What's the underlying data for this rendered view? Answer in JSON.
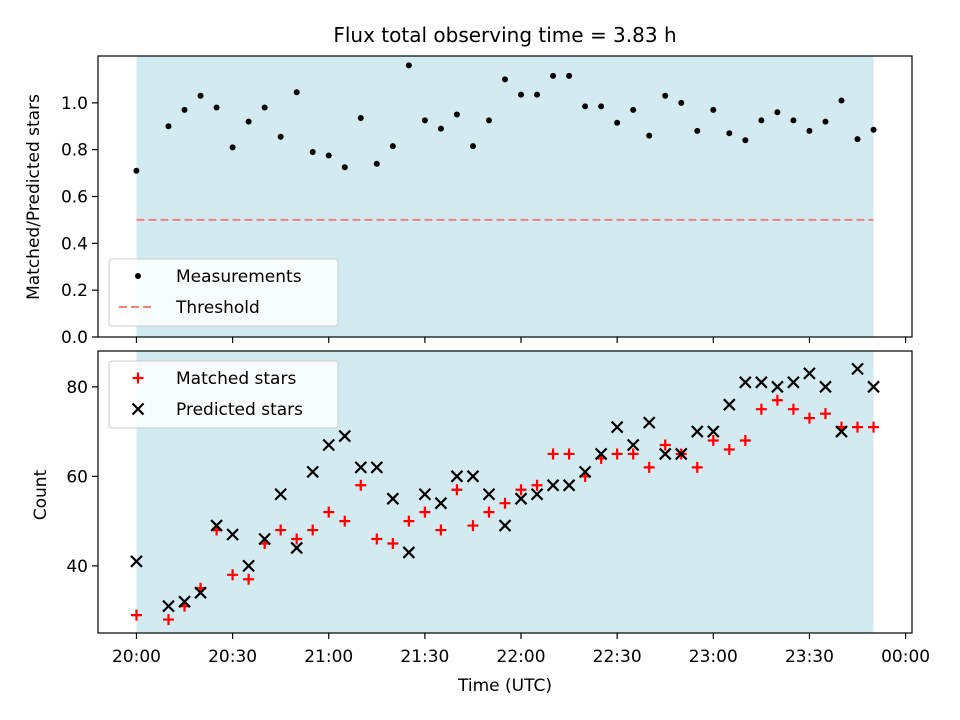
{
  "chart_data": {
    "type": "scatter",
    "title": "Flux total observing time = 3.83 h",
    "xlabel": "Time (UTC)",
    "x_ticks": [
      "20:00",
      "20:30",
      "21:00",
      "21:30",
      "22:00",
      "22:30",
      "23:00",
      "23:30",
      "00:00"
    ],
    "xlim_minutes": [
      -12,
      242
    ],
    "observing_window_minutes": [
      0,
      230
    ],
    "colors": {
      "shade": "#d3eaf1",
      "measurements": "#000000",
      "threshold": "#f08080",
      "matched": "#ff0000",
      "predicted": "#000000"
    },
    "top": {
      "ylabel": "Matched/Predicted stars",
      "ylim": [
        0,
        1.2
      ],
      "y_ticks": [
        0.0,
        0.2,
        0.4,
        0.6,
        0.8,
        1.0
      ],
      "y_tick_labels": [
        "0.0",
        "0.2",
        "0.4",
        "0.6",
        "0.8",
        "1.0"
      ],
      "threshold": 0.5,
      "legend": {
        "position": "lower-left",
        "entries": [
          "Measurements",
          "Threshold"
        ]
      },
      "series": [
        {
          "name": "Measurements",
          "marker": "dot",
          "x": [
            0,
            10,
            15,
            20,
            25,
            30,
            35,
            40,
            45,
            50,
            55,
            60,
            65,
            70,
            75,
            80,
            85,
            90,
            95,
            100,
            105,
            110,
            115,
            120,
            125,
            130,
            135,
            140,
            145,
            150,
            155,
            160,
            165,
            170,
            175,
            180,
            185,
            190,
            195,
            200,
            205,
            210,
            215,
            220,
            225,
            230
          ],
          "y": [
            0.71,
            0.9,
            0.97,
            1.03,
            0.98,
            0.81,
            0.92,
            0.98,
            0.855,
            1.045,
            0.79,
            0.775,
            0.725,
            0.935,
            0.74,
            0.815,
            1.16,
            0.925,
            0.89,
            0.95,
            0.815,
            0.925,
            1.1,
            1.035,
            1.035,
            1.115,
            1.115,
            0.985,
            0.985,
            0.915,
            0.97,
            0.86,
            1.03,
            1.0,
            0.88,
            0.97,
            0.87,
            0.84,
            0.925,
            0.96,
            0.925,
            0.88,
            0.92,
            1.01,
            0.845,
            0.885
          ]
        }
      ]
    },
    "bottom": {
      "ylabel": "Count",
      "ylim": [
        25,
        88
      ],
      "y_ticks": [
        40,
        60,
        80
      ],
      "y_tick_labels": [
        "40",
        "60",
        "80"
      ],
      "legend": {
        "position": "top-left",
        "entries": [
          "Matched stars",
          "Predicted stars"
        ]
      },
      "series": [
        {
          "name": "Matched stars",
          "marker": "plus",
          "x": [
            0,
            10,
            15,
            20,
            25,
            30,
            35,
            40,
            45,
            50,
            55,
            60,
            65,
            70,
            75,
            80,
            85,
            90,
            95,
            100,
            105,
            110,
            115,
            120,
            125,
            130,
            135,
            140,
            145,
            150,
            155,
            160,
            165,
            170,
            175,
            180,
            185,
            190,
            195,
            200,
            205,
            210,
            215,
            220,
            225,
            230
          ],
          "y": [
            29,
            28,
            31,
            35,
            48,
            38,
            37,
            45,
            48,
            46,
            48,
            52,
            50,
            58,
            46,
            45,
            50,
            52,
            48,
            57,
            49,
            52,
            54,
            57,
            58,
            65,
            65,
            60,
            64,
            65,
            65,
            62,
            67,
            65,
            62,
            68,
            66,
            68,
            75,
            77,
            75,
            73,
            74,
            71,
            71,
            71
          ]
        },
        {
          "name": "Predicted stars",
          "marker": "x",
          "x": [
            0,
            10,
            15,
            20,
            25,
            30,
            35,
            40,
            45,
            50,
            55,
            60,
            65,
            70,
            75,
            80,
            85,
            90,
            95,
            100,
            105,
            110,
            115,
            120,
            125,
            130,
            135,
            140,
            145,
            150,
            155,
            160,
            165,
            170,
            175,
            180,
            185,
            190,
            195,
            200,
            205,
            210,
            215,
            220,
            225,
            230
          ],
          "y": [
            41,
            31,
            32,
            34,
            49,
            47,
            40,
            46,
            56,
            44,
            61,
            67,
            69,
            62,
            62,
            55,
            43,
            56,
            54,
            60,
            60,
            56,
            49,
            55,
            56,
            58,
            58,
            61,
            65,
            71,
            67,
            72,
            65,
            65,
            70,
            70,
            76,
            81,
            81,
            80,
            81,
            83,
            80,
            70,
            84,
            80
          ]
        }
      ]
    }
  }
}
